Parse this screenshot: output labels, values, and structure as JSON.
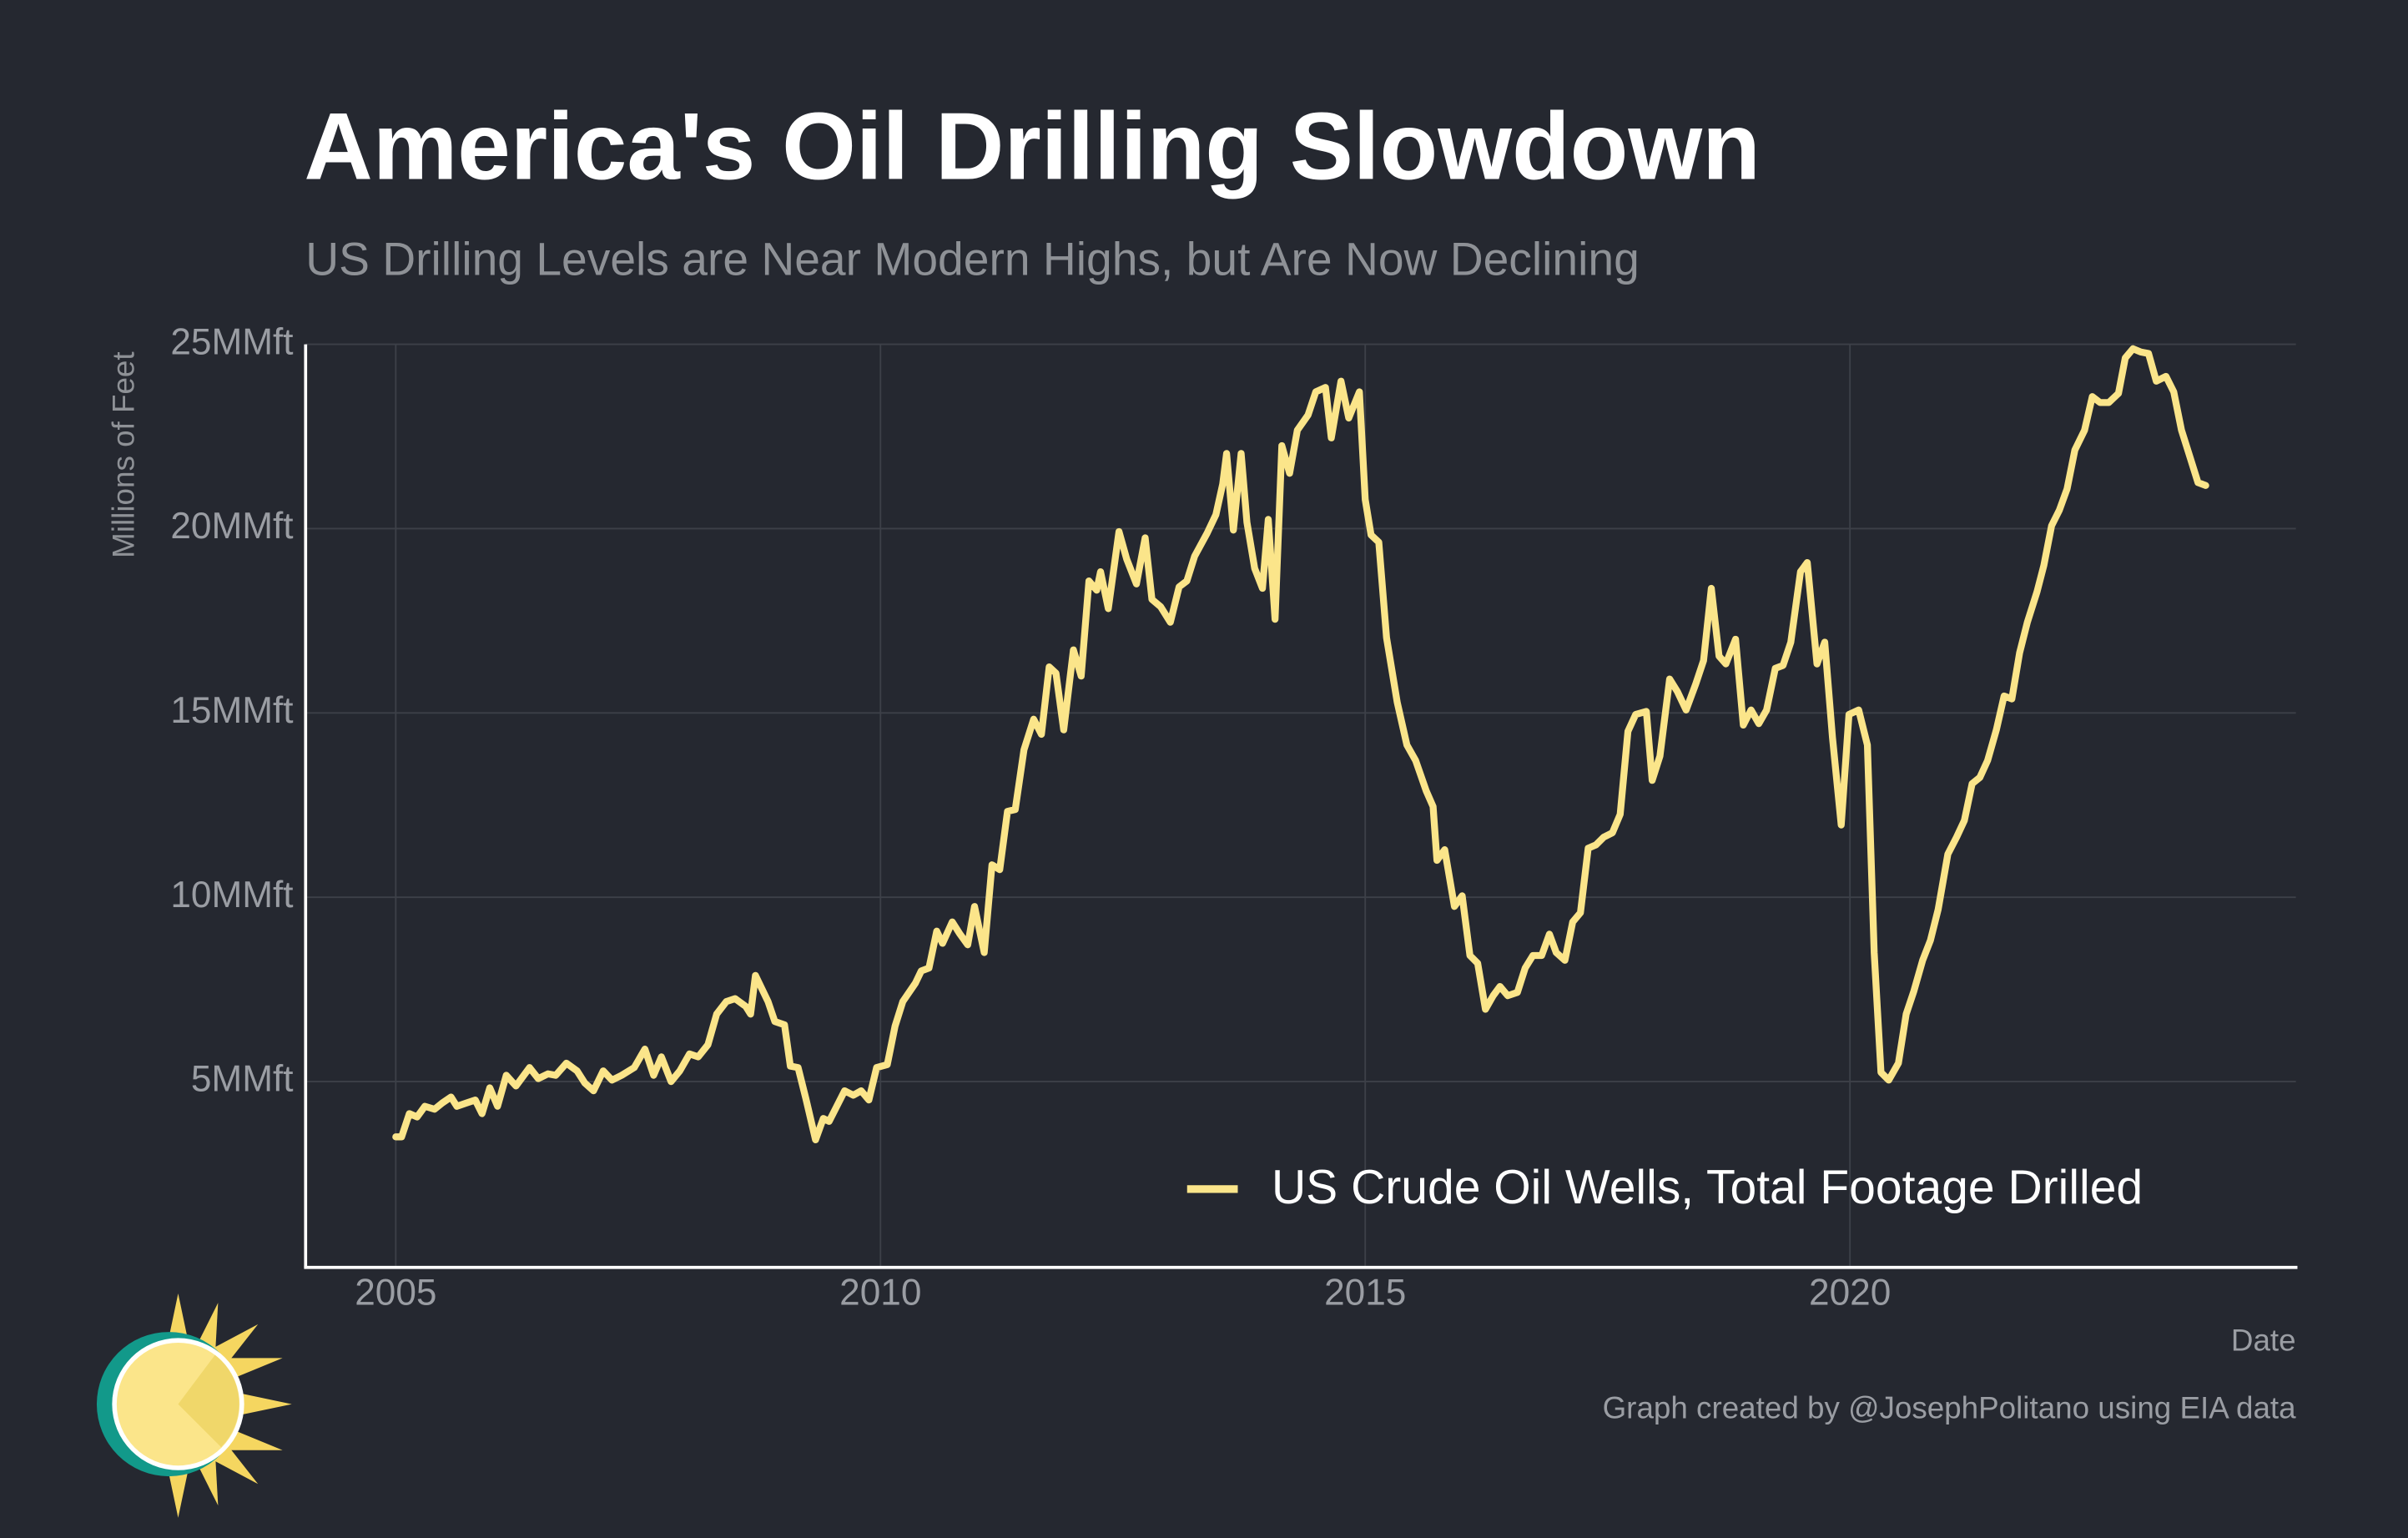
{
  "chart_data": {
    "type": "line",
    "title": "America's Oil Drilling Slowdown",
    "subtitle": "US Drilling Levels are Near Modern Highs, but Are Now Declining",
    "y_label": "Millions of Feet",
    "x_label": "Date",
    "caption": "Graph created by @JosephPolitano using EIA data",
    "xlim": [
      2004.07,
      2024.6
    ],
    "xticks": [
      2005,
      2010,
      2015,
      2020
    ],
    "ylim": [
      0,
      25
    ],
    "yticks": [
      {
        "value": 5,
        "label": "5MMft"
      },
      {
        "value": 10,
        "label": "10MMft"
      },
      {
        "value": 15,
        "label": "15MMft"
      },
      {
        "value": 20,
        "label": "20MMft"
      },
      {
        "value": 25,
        "label": "25MMft"
      }
    ],
    "grid": true,
    "legend": "bottom-right",
    "series": [
      {
        "name": "US Crude Oil Wells, Total Footage Drilled",
        "color": "#fbe58a",
        "x": [
          2005.0,
          2005.06,
          2005.14,
          2005.22,
          2005.3,
          2005.4,
          2005.48,
          2005.57,
          2005.63,
          2005.73,
          2005.82,
          2005.89,
          2005.97,
          2006.05,
          2006.14,
          2006.24,
          2006.38,
          2006.47,
          2006.57,
          2006.65,
          2006.76,
          2006.87,
          2006.95,
          2007.04,
          2007.14,
          2007.23,
          2007.33,
          2007.46,
          2007.57,
          2007.66,
          2007.74,
          2007.84,
          2007.93,
          2008.03,
          2008.12,
          2008.22,
          2008.31,
          2008.41,
          2008.5,
          2008.61,
          2008.66,
          2008.71,
          2008.84,
          2008.91,
          2009.01,
          2009.07,
          2009.15,
          2009.23,
          2009.33,
          2009.41,
          2009.47,
          2009.63,
          2009.72,
          2009.8,
          2009.88,
          2009.96,
          2010.07,
          2010.15,
          2010.23,
          2010.36,
          2010.42,
          2010.5,
          2010.58,
          2010.64,
          2010.74,
          2010.82,
          2010.9,
          2010.97,
          2011.07,
          2011.15,
          2011.23,
          2011.31,
          2011.39,
          2011.48,
          2011.58,
          2011.66,
          2011.74,
          2011.81,
          2011.89,
          2011.99,
          2012.07,
          2012.15,
          2012.23,
          2012.27,
          2012.35,
          2012.46,
          2012.54,
          2012.64,
          2012.73,
          2012.8,
          2012.89,
          2012.99,
          2013.08,
          2013.16,
          2013.24,
          2013.37,
          2013.46,
          2013.53,
          2013.57,
          2013.64,
          2013.72,
          2013.78,
          2013.86,
          2013.94,
          2014.0,
          2014.07,
          2014.14,
          2014.22,
          2014.3,
          2014.41,
          2014.49,
          2014.59,
          2014.65,
          2014.75,
          2014.83,
          2014.94,
          2015.0,
          2015.06,
          2015.14,
          2015.22,
          2015.33,
          2015.43,
          2015.52,
          2015.63,
          2015.7,
          2015.74,
          2015.82,
          2015.92,
          2016.0,
          2016.08,
          2016.16,
          2016.24,
          2016.32,
          2016.39,
          2016.47,
          2016.57,
          2016.65,
          2016.73,
          2016.82,
          2016.9,
          2016.97,
          2017.06,
          2017.14,
          2017.22,
          2017.3,
          2017.38,
          2017.46,
          2017.55,
          2017.63,
          2017.71,
          2017.79,
          2017.9,
          2017.96,
          2018.04,
          2018.14,
          2018.22,
          2018.31,
          2018.41,
          2018.49,
          2018.57,
          2018.65,
          2018.72,
          2018.82,
          2018.9,
          2018.98,
          2019.06,
          2019.14,
          2019.23,
          2019.31,
          2019.39,
          2019.49,
          2019.56,
          2019.66,
          2019.74,
          2019.82,
          2019.91,
          2019.99,
          2020.09,
          2020.18,
          2020.25,
          2020.32,
          2020.4,
          2020.5,
          2020.58,
          2020.66,
          2020.75,
          2020.83,
          2020.91,
          2021.01,
          2021.1,
          2021.18,
          2021.26,
          2021.34,
          2021.42,
          2021.51,
          2021.59,
          2021.67,
          2021.75,
          2021.83,
          2021.93,
          2022.0,
          2022.08,
          2022.16,
          2022.24,
          2022.32,
          2022.42,
          2022.5,
          2022.58,
          2022.67,
          2022.77,
          2022.84,
          2022.92,
          2023.0,
          2023.08,
          2023.16,
          2023.26,
          2023.34,
          2023.42,
          2023.51,
          2023.59,
          2023.67
        ],
        "values": [
          3.5,
          3.5,
          4.13,
          4.04,
          4.33,
          4.25,
          4.42,
          4.58,
          4.33,
          4.42,
          4.5,
          4.13,
          4.83,
          4.33,
          5.17,
          4.88,
          5.38,
          5.08,
          5.21,
          5.17,
          5.5,
          5.29,
          4.96,
          4.75,
          5.29,
          5.04,
          5.17,
          5.38,
          5.88,
          5.17,
          5.67,
          5.0,
          5.29,
          5.75,
          5.67,
          6.0,
          6.83,
          7.17,
          7.25,
          7.04,
          6.83,
          7.88,
          7.17,
          6.63,
          6.54,
          5.42,
          5.38,
          4.54,
          3.42,
          4.0,
          3.92,
          4.75,
          4.63,
          4.75,
          4.5,
          5.38,
          5.46,
          6.5,
          7.17,
          7.67,
          8.0,
          8.08,
          9.08,
          8.75,
          9.33,
          9.0,
          8.71,
          9.75,
          8.5,
          10.88,
          10.75,
          12.33,
          12.38,
          14.0,
          14.83,
          14.42,
          16.25,
          16.08,
          14.54,
          16.71,
          16.0,
          18.58,
          18.33,
          18.83,
          17.83,
          19.92,
          19.17,
          18.5,
          19.75,
          18.08,
          17.88,
          17.46,
          18.42,
          18.58,
          19.25,
          19.88,
          20.38,
          21.21,
          22.04,
          19.96,
          22.04,
          20.17,
          18.92,
          18.38,
          20.25,
          17.54,
          22.25,
          21.5,
          22.67,
          23.08,
          23.71,
          23.83,
          22.46,
          24.0,
          23.0,
          23.71,
          20.79,
          19.83,
          19.63,
          17.04,
          15.29,
          14.13,
          13.71,
          12.88,
          12.46,
          11.0,
          11.29,
          9.75,
          10.04,
          8.42,
          8.21,
          6.96,
          7.33,
          7.58,
          7.33,
          7.42,
          8.08,
          8.42,
          8.42,
          9.0,
          8.5,
          8.29,
          9.33,
          9.58,
          11.33,
          11.42,
          11.63,
          11.75,
          12.25,
          14.5,
          14.96,
          15.04,
          13.17,
          13.83,
          15.92,
          15.58,
          15.08,
          15.79,
          16.42,
          18.38,
          16.54,
          16.33,
          17.0,
          14.67,
          15.08,
          14.71,
          15.08,
          16.21,
          16.29,
          16.92,
          18.83,
          19.08,
          16.33,
          16.92,
          14.33,
          11.96,
          14.96,
          15.08,
          14.13,
          8.5,
          5.25,
          5.04,
          5.5,
          6.83,
          7.46,
          8.29,
          8.83,
          9.67,
          11.17,
          11.63,
          12.08,
          13.08,
          13.25,
          13.71,
          14.54,
          15.46,
          15.38,
          16.63,
          17.46,
          18.29,
          19.0,
          20.08,
          20.5,
          21.08,
          22.13,
          22.67,
          23.58,
          23.42,
          23.42,
          23.67,
          24.63,
          24.88,
          24.79,
          24.75,
          24.0,
          24.13,
          23.71,
          22.67,
          21.92,
          21.25,
          21.17
        ]
      }
    ]
  }
}
